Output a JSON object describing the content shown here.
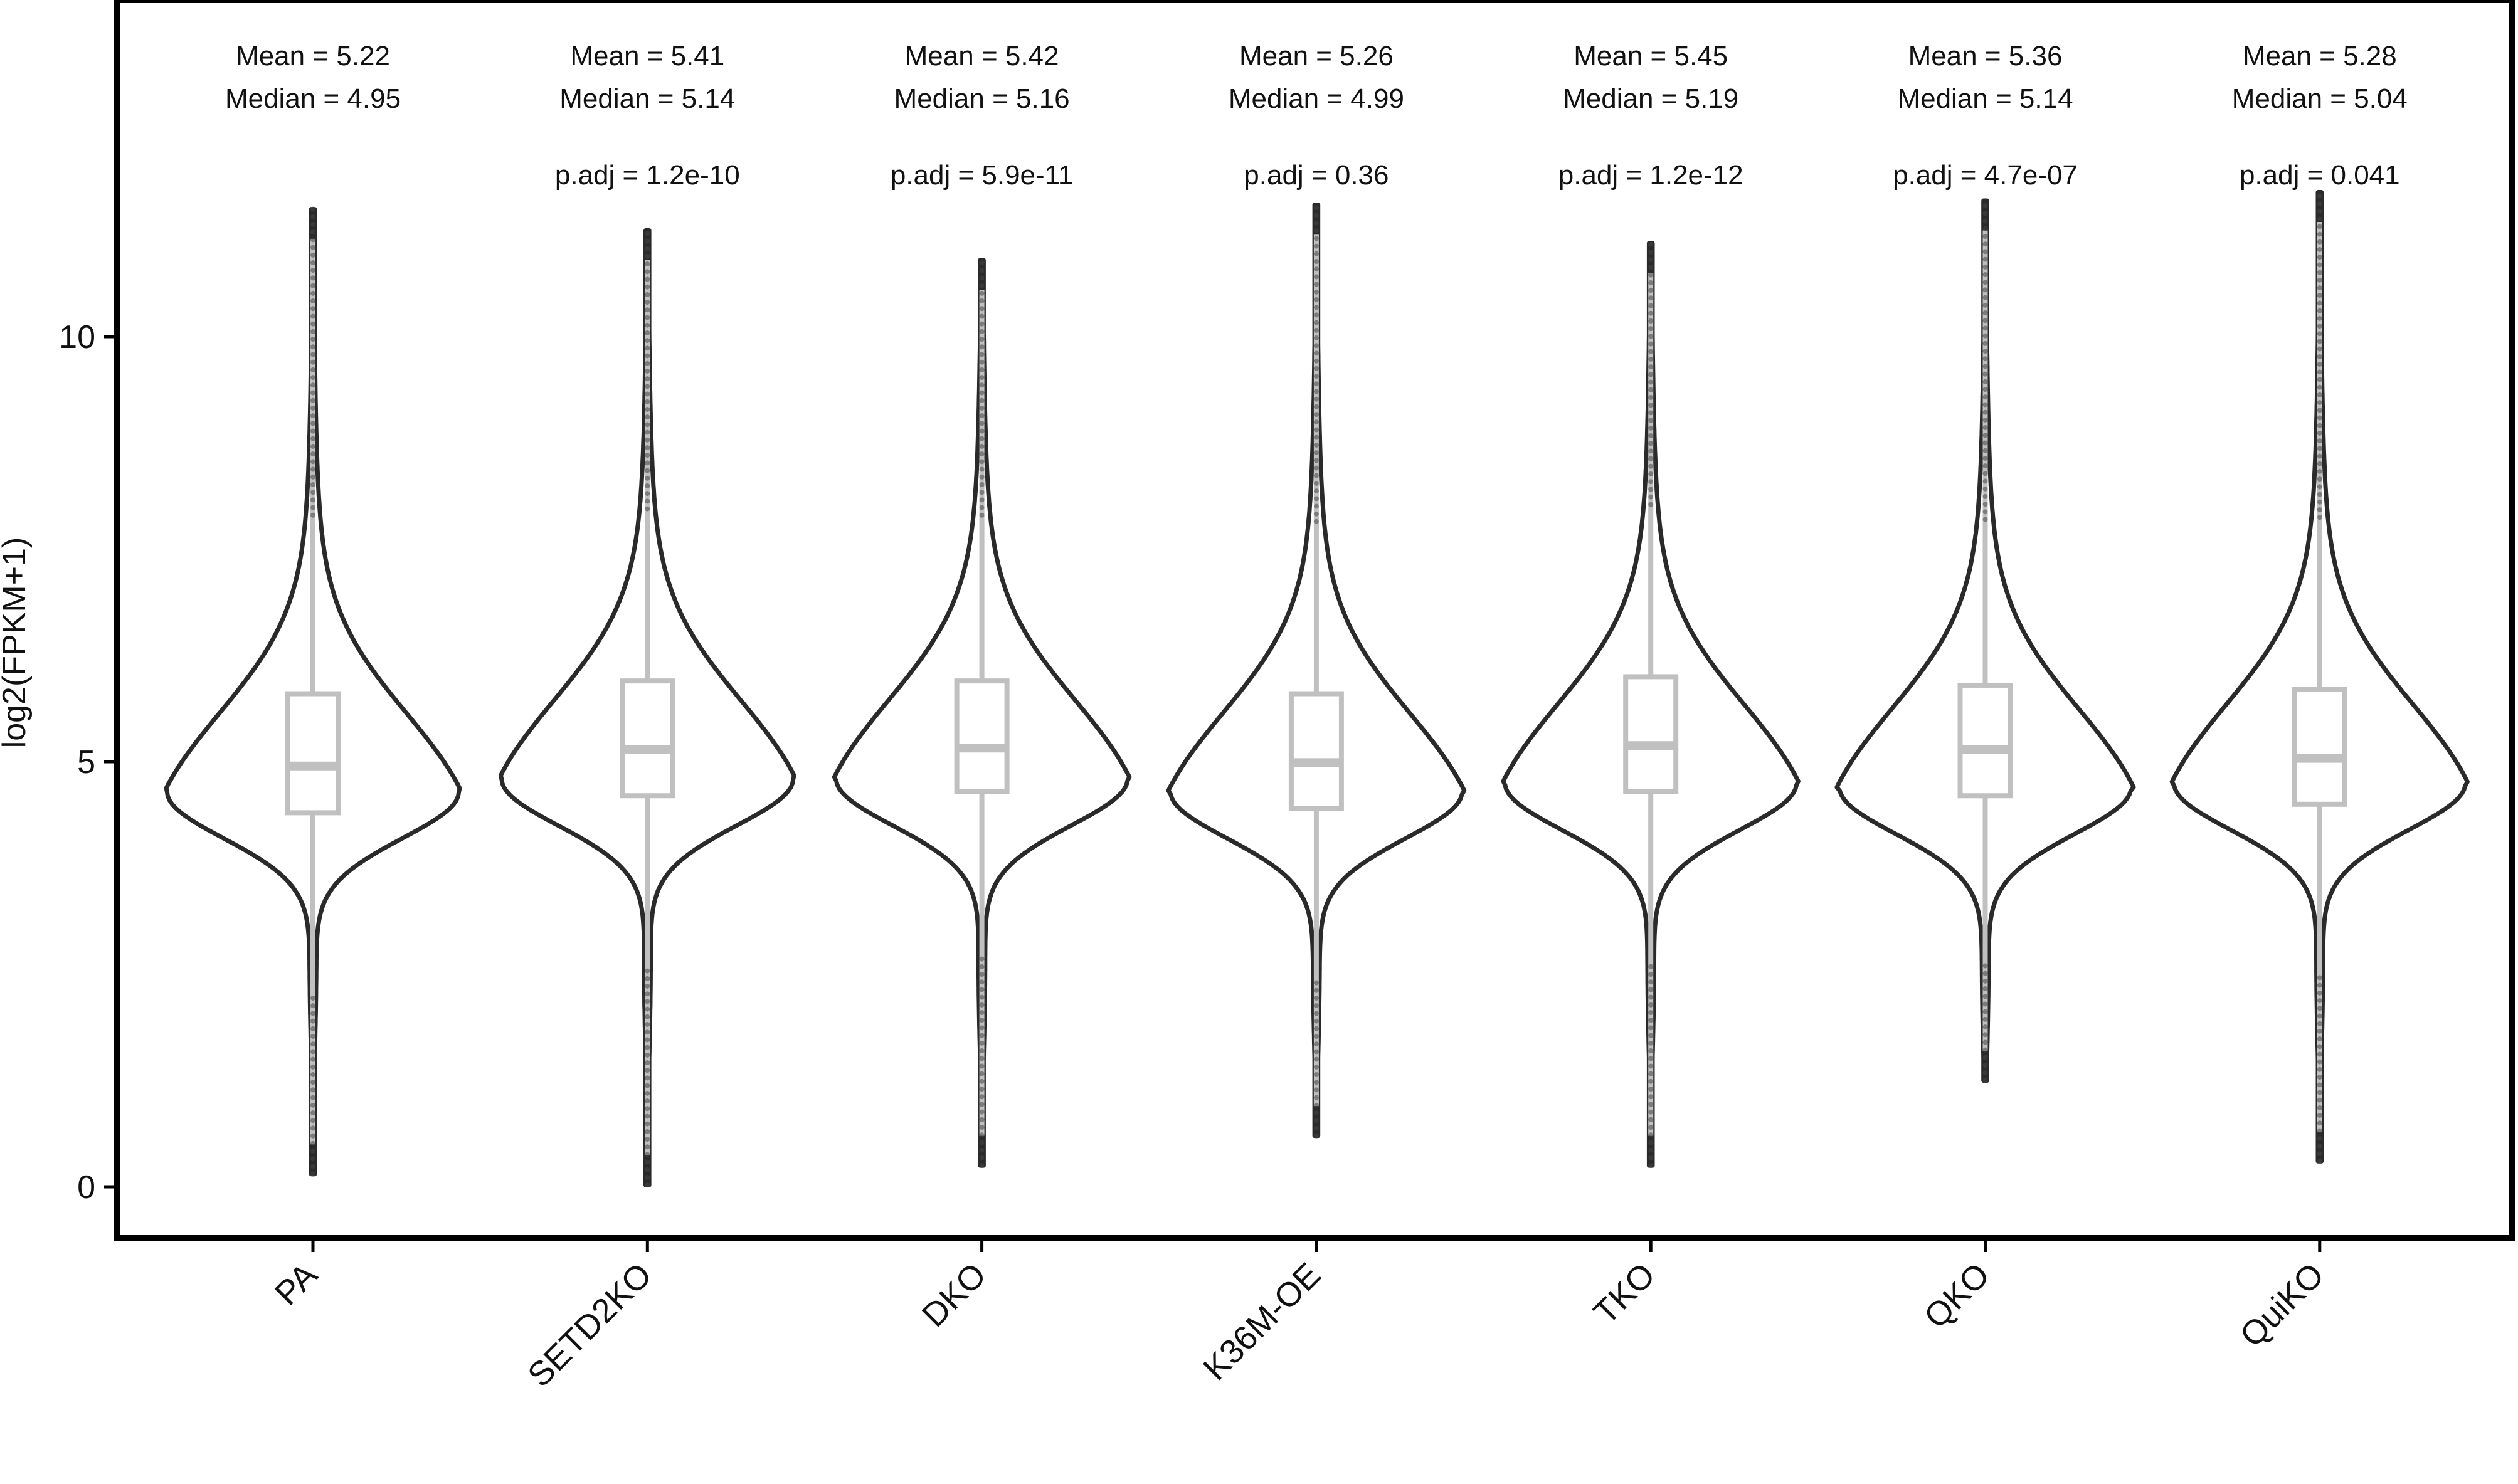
{
  "chart_data": {
    "type": "violin",
    "title": "",
    "xlabel": "",
    "ylabel": "log2(FPKM+1)",
    "ylim": [
      -0.5,
      14
    ],
    "yticks": [
      0,
      5,
      10
    ],
    "grid": false,
    "legend": "none",
    "colors": {
      "violin_outline": "#2a2a2a",
      "box": "#c0c0c0",
      "points": "#444444",
      "frame": "#000000"
    },
    "categories": [
      "PA",
      "SETD2KO",
      "DKO",
      "K36M-OE",
      "TKO",
      "QKO",
      "QuiKO"
    ],
    "groups": [
      {
        "name": "PA",
        "mean_label": "Mean = 5.22",
        "median_label": "Median = 4.95",
        "padj_label": "",
        "mean": 5.22,
        "median": 4.95,
        "q1": 4.4,
        "q3": 5.8,
        "min": 0.15,
        "max": 11.5,
        "mode": 4.65
      },
      {
        "name": "SETD2KO",
        "mean_label": "Mean = 5.41",
        "median_label": "Median = 5.14",
        "padj_label": "p.adj = 1.2e-10",
        "mean": 5.41,
        "median": 5.14,
        "q1": 4.6,
        "q3": 5.95,
        "min": 0.02,
        "max": 11.25,
        "mode": 4.8
      },
      {
        "name": "DKO",
        "mean_label": "Mean = 5.42",
        "median_label": "Median = 5.16",
        "padj_label": "p.adj = 5.9e-11",
        "mean": 5.42,
        "median": 5.16,
        "q1": 4.65,
        "q3": 5.95,
        "min": 0.25,
        "max": 10.9,
        "mode": 4.8
      },
      {
        "name": "K36M-OE",
        "mean_label": "Mean = 5.26",
        "median_label": "Median = 4.99",
        "padj_label": "p.adj = 0.36",
        "mean": 5.26,
        "median": 4.99,
        "q1": 4.45,
        "q3": 5.8,
        "min": 0.6,
        "max": 11.55,
        "mode": 4.65
      },
      {
        "name": "TKO",
        "mean_label": "Mean = 5.45",
        "median_label": "Median = 5.19",
        "padj_label": "p.adj = 1.2e-12",
        "mean": 5.45,
        "median": 5.19,
        "q1": 4.65,
        "q3": 6.0,
        "min": 0.25,
        "max": 11.1,
        "mode": 4.75
      },
      {
        "name": "QKO",
        "mean_label": "Mean = 5.36",
        "median_label": "Median = 5.14",
        "padj_label": "p.adj = 4.7e-07",
        "mean": 5.36,
        "median": 5.14,
        "q1": 4.6,
        "q3": 5.9,
        "min": 1.25,
        "max": 11.6,
        "mode": 4.7
      },
      {
        "name": "QuiKO",
        "mean_label": "Mean = 5.28",
        "median_label": "Median = 5.04",
        "padj_label": "p.adj = 0.041",
        "mean": 5.28,
        "median": 5.04,
        "q1": 4.5,
        "q3": 5.85,
        "min": 0.3,
        "max": 11.7,
        "mode": 4.75
      }
    ]
  }
}
